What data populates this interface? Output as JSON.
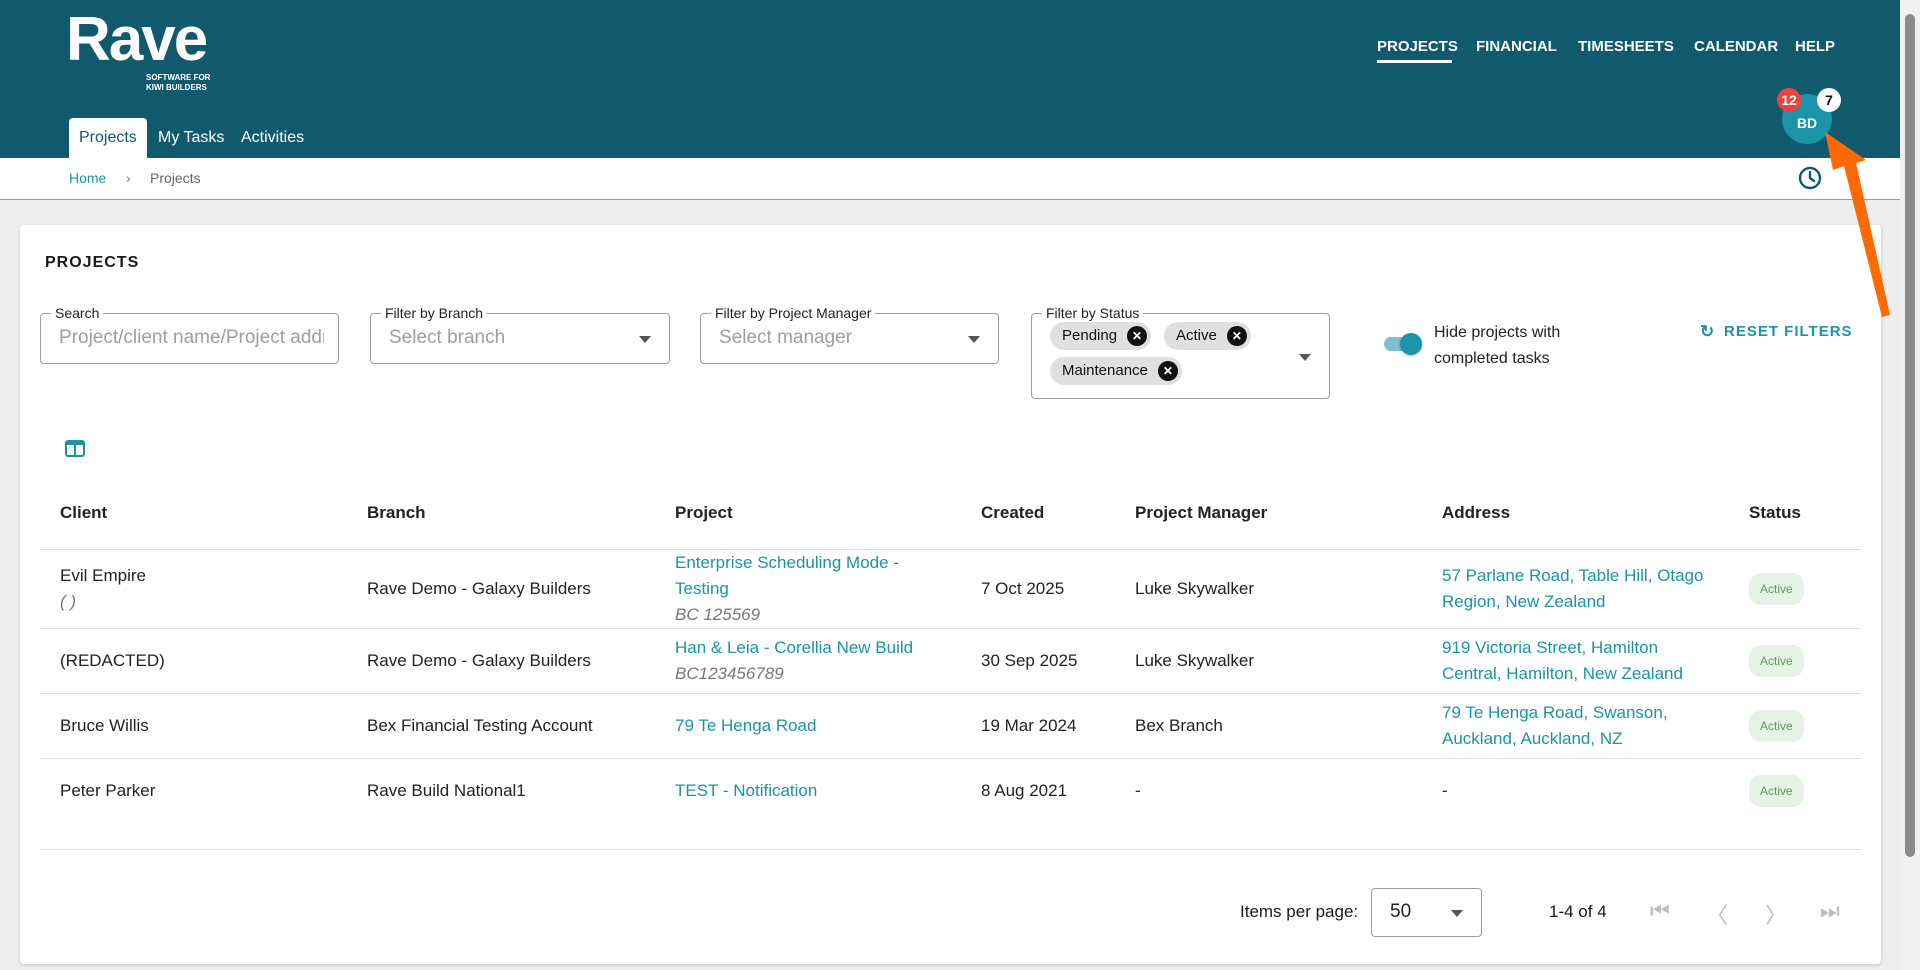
{
  "logo": {
    "word": "Rave",
    "tagline": "SOFTWARE FOR KIWI BUILDERS"
  },
  "topnav": [
    "PROJECTS",
    "FINANCIAL",
    "TIMESHEETS",
    "CALENDAR",
    "HELP"
  ],
  "tabs": [
    "Projects",
    "My Tasks",
    "Activities"
  ],
  "user": {
    "initials": "BD",
    "badge_red": "12",
    "badge_white": "7"
  },
  "breadcrumb": {
    "home": "Home",
    "sep": "›",
    "current": "Projects"
  },
  "card": {
    "title": "PROJECTS"
  },
  "filters": {
    "search": {
      "label": "Search",
      "placeholder": "Project/client name/Project address"
    },
    "branch": {
      "label": "Filter by Branch",
      "placeholder": "Select branch"
    },
    "manager": {
      "label": "Filter by Project Manager",
      "placeholder": "Select manager"
    },
    "status": {
      "label": "Filter by Status",
      "chips": [
        "Pending",
        "Active",
        "Maintenance"
      ]
    },
    "toggle_label": "Hide projects with completed tasks",
    "toggle_on": true,
    "reset": "RESET FILTERS"
  },
  "table": {
    "headers": [
      "Client",
      "Branch",
      "Project",
      "Created",
      "Project Manager",
      "Address",
      "Status"
    ],
    "rows": [
      {
        "client": "Evil Empire",
        "client_sub": "( )",
        "branch": "Rave Demo - Galaxy Builders",
        "project": "Enterprise Scheduling Mode - Testing",
        "project_sub": "BC 125569",
        "created": "7 Oct 2025",
        "manager": "Luke Skywalker",
        "address": "57 Parlane Road, Table Hill, Otago Region, New Zealand",
        "status": "Active"
      },
      {
        "client": "(REDACTED)",
        "branch": "Rave Demo - Galaxy Builders",
        "project": "Han & Leia - Corellia New Build",
        "project_sub": "BC123456789",
        "created": "30 Sep 2025",
        "manager": "Luke Skywalker",
        "address": "919 Victoria Street, Hamilton Central, Hamilton, New Zealand",
        "status": "Active"
      },
      {
        "client": "Bruce Willis",
        "branch": "Bex Financial Testing Account",
        "project": "79 Te Henga Road",
        "created": "19 Mar 2024",
        "manager": "Bex Branch",
        "address": "79 Te Henga Road, Swanson, Auckland, Auckland, NZ",
        "status": "Active"
      },
      {
        "client": "Peter Parker",
        "branch": "Rave Build National1",
        "project": "TEST - Notification",
        "created": "8 Aug 2021",
        "manager": "-",
        "address": "-",
        "status": "Active"
      }
    ]
  },
  "paginator": {
    "label": "Items per page:",
    "per_page": "50",
    "range": "1-4 of 4"
  },
  "colors": {
    "header": "#115a6d",
    "accent": "#1b93a8",
    "annotation_arrow": "#ff6a00"
  }
}
